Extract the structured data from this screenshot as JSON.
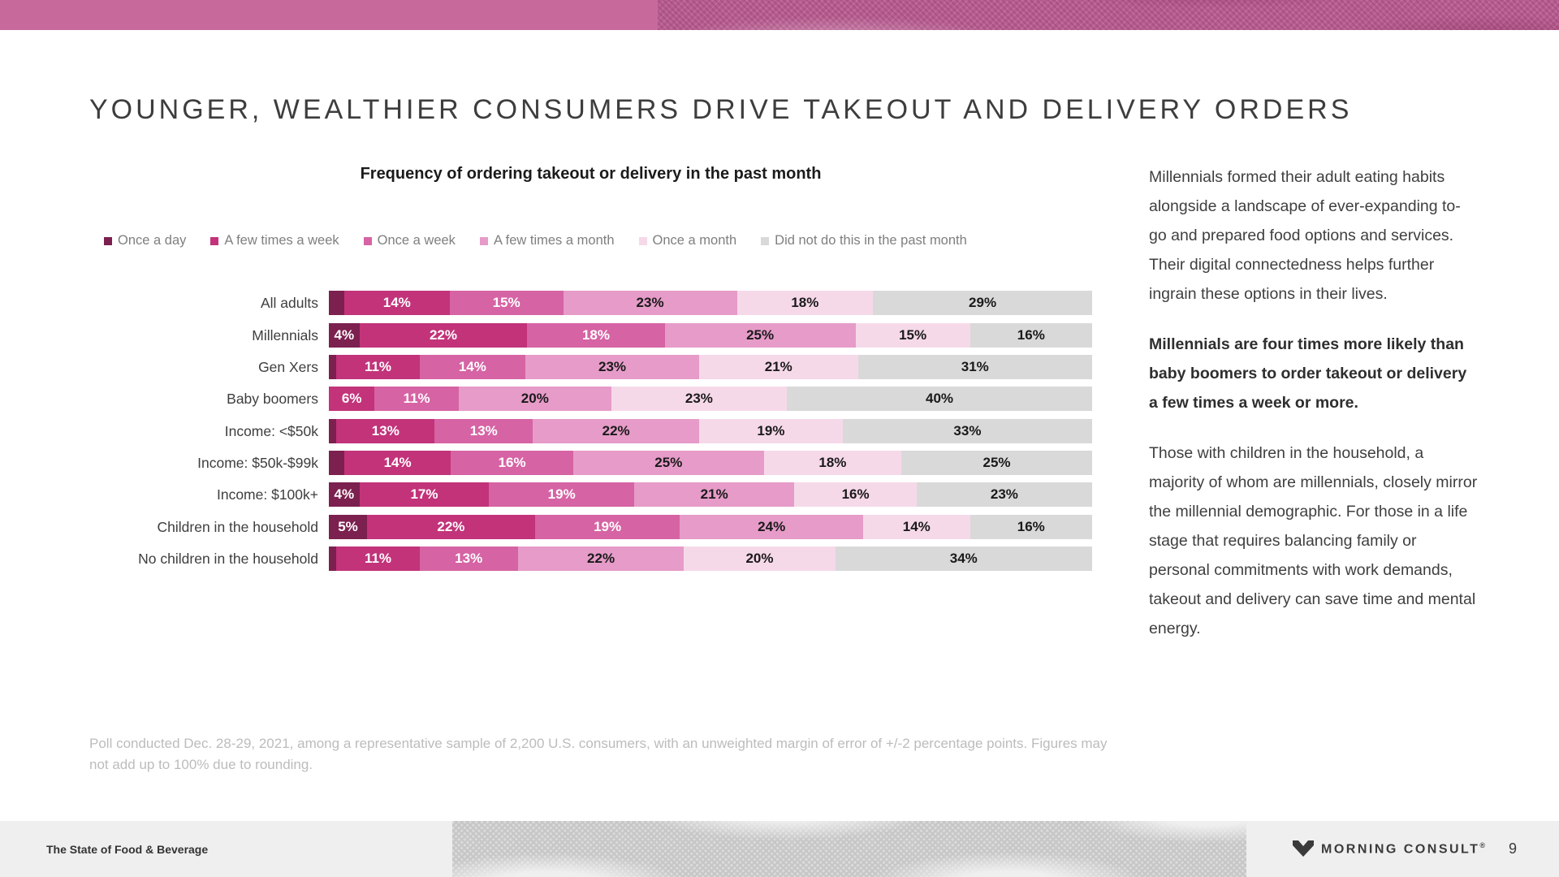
{
  "slide": {
    "title": "YOUNGER, WEALTHIER CONSUMERS DRIVE TAKEOUT AND DELIVERY ORDERS",
    "footnote": "Poll conducted Dec. 28-29, 2021, among a representative sample of 2,200 U.S. consumers, with an unweighted margin of error of +/-2 percentage points. Figures may not add up to 100% due to rounding.",
    "footer_left": "The State of Food & Beverage",
    "brand_name": "MORNING CONSULT",
    "brand_reg": "®",
    "page_number": "9",
    "accent_color": "#c8699b"
  },
  "sidebar": {
    "paragraphs": [
      {
        "bold": false,
        "text": "Millennials formed their adult eating habits alongside a landscape of ever-expanding to-go and prepared food options and services. Their digital connectedness helps further ingrain these options in their lives."
      },
      {
        "bold": true,
        "text": "Millennials are four times more likely than baby boomers to order takeout or delivery a few times a week or more."
      },
      {
        "bold": false,
        "text": "Those with children in the household, a majority of whom are millennials, closely mirror the millennial demographic. For those in a life stage that requires balancing family or personal commitments with work demands, takeout and delivery can save time and mental energy."
      }
    ]
  },
  "chart_data": {
    "type": "bar",
    "variant": "stacked-horizontal",
    "title": "Frequency of ordering takeout or delivery in the past month",
    "legend_position": "top",
    "series_names": [
      "Once a day",
      "A few times a week",
      "Once a week",
      "A few times a month",
      "Once a month",
      "Did not do this in the past month"
    ],
    "series_colors": [
      "#7c204f",
      "#c2337a",
      "#d663a4",
      "#e69bc8",
      "#f6d9e9",
      "#d9d9d9"
    ],
    "series_text_colors": [
      "#ffffff",
      "#ffffff",
      "#ffffff",
      "#1a1a1a",
      "#1a1a1a",
      "#1a1a1a"
    ],
    "xlim": [
      0,
      100
    ],
    "unit": "%",
    "groups": [
      {
        "rows": [
          {
            "label": "All adults",
            "values": [
              2,
              14,
              15,
              23,
              18,
              29
            ],
            "labels": [
              "",
              "14%",
              "15%",
              "23%",
              "18%",
              "29%"
            ]
          }
        ]
      },
      {
        "rows": [
          {
            "label": "Millennials",
            "values": [
              4,
              22,
              18,
              25,
              15,
              16
            ],
            "labels": [
              "4%",
              "22%",
              "18%",
              "25%",
              "15%",
              "16%"
            ]
          },
          {
            "label": "Gen Xers",
            "values": [
              1,
              11,
              14,
              23,
              21,
              31
            ],
            "labels": [
              "",
              "11%",
              "14%",
              "23%",
              "21%",
              "31%"
            ]
          },
          {
            "label": "Baby boomers",
            "values": [
              0,
              6,
              11,
              20,
              23,
              40
            ],
            "labels": [
              "",
              "6%",
              "11%",
              "20%",
              "23%",
              "40%"
            ]
          }
        ]
      },
      {
        "rows": [
          {
            "label": "Income: <$50k",
            "values": [
              1,
              13,
              13,
              22,
              19,
              33
            ],
            "labels": [
              "",
              "13%",
              "13%",
              "22%",
              "19%",
              "33%"
            ]
          },
          {
            "label": "Income: $50k-$99k",
            "values": [
              2,
              14,
              16,
              25,
              18,
              25
            ],
            "labels": [
              "",
              "14%",
              "16%",
              "25%",
              "18%",
              "25%"
            ]
          },
          {
            "label": "Income: $100k+",
            "values": [
              4,
              17,
              19,
              21,
              16,
              23
            ],
            "labels": [
              "4%",
              "17%",
              "19%",
              "21%",
              "16%",
              "23%"
            ]
          }
        ]
      },
      {
        "rows": [
          {
            "label": "Children in the household",
            "values": [
              5,
              22,
              19,
              24,
              14,
              16
            ],
            "labels": [
              "5%",
              "22%",
              "19%",
              "24%",
              "14%",
              "16%"
            ]
          },
          {
            "label": "No children in the household",
            "values": [
              1,
              11,
              13,
              22,
              20,
              34
            ],
            "labels": [
              "",
              "11%",
              "13%",
              "22%",
              "20%",
              "34%"
            ]
          }
        ]
      }
    ]
  }
}
